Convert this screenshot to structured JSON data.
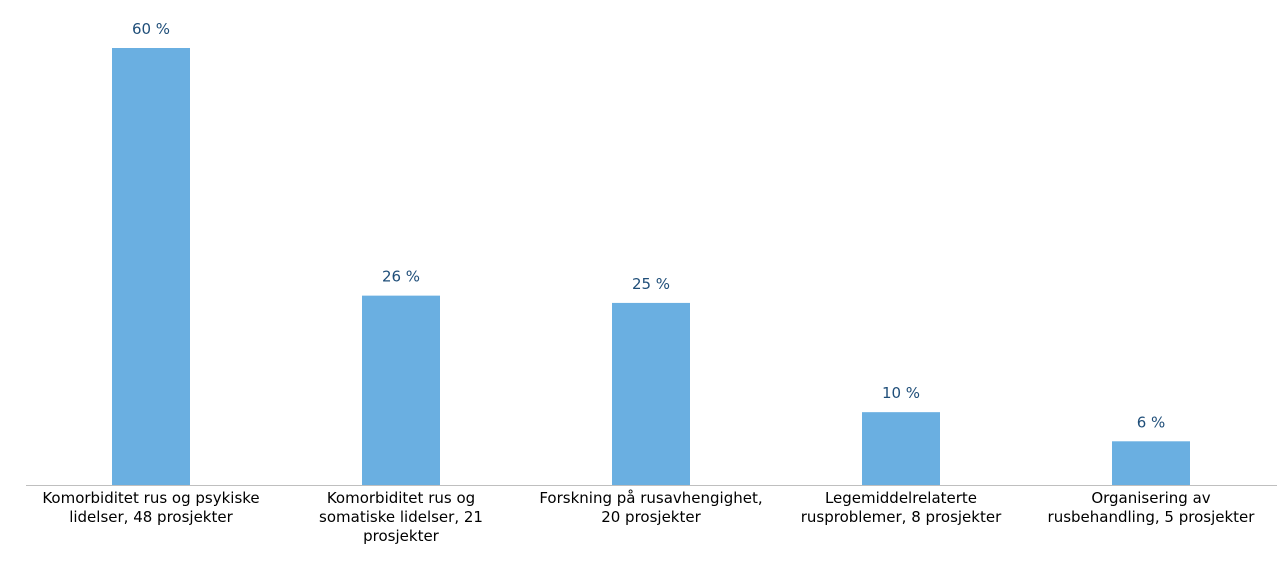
{
  "chart_data": {
    "type": "bar",
    "categories": [
      "Komorbiditet rus og psykiske lidelser, 48 prosjekter",
      "Komorbiditet rus og somatiske lidelser, 21 prosjekter",
      "Forskning på rusavhengighet, 20 prosjekter",
      "Legemiddelrelaterte rusproblemer, 8 prosjekter",
      "Organisering av rusbehandling, 5 prosjekter"
    ],
    "values": [
      60,
      26,
      25,
      10,
      6
    ],
    "value_labels": [
      "60 %",
      "26 %",
      "25 %",
      "10 %",
      "6 %"
    ],
    "color": "#6aafe1",
    "label_color": "#1f4e79",
    "grid": false
  }
}
